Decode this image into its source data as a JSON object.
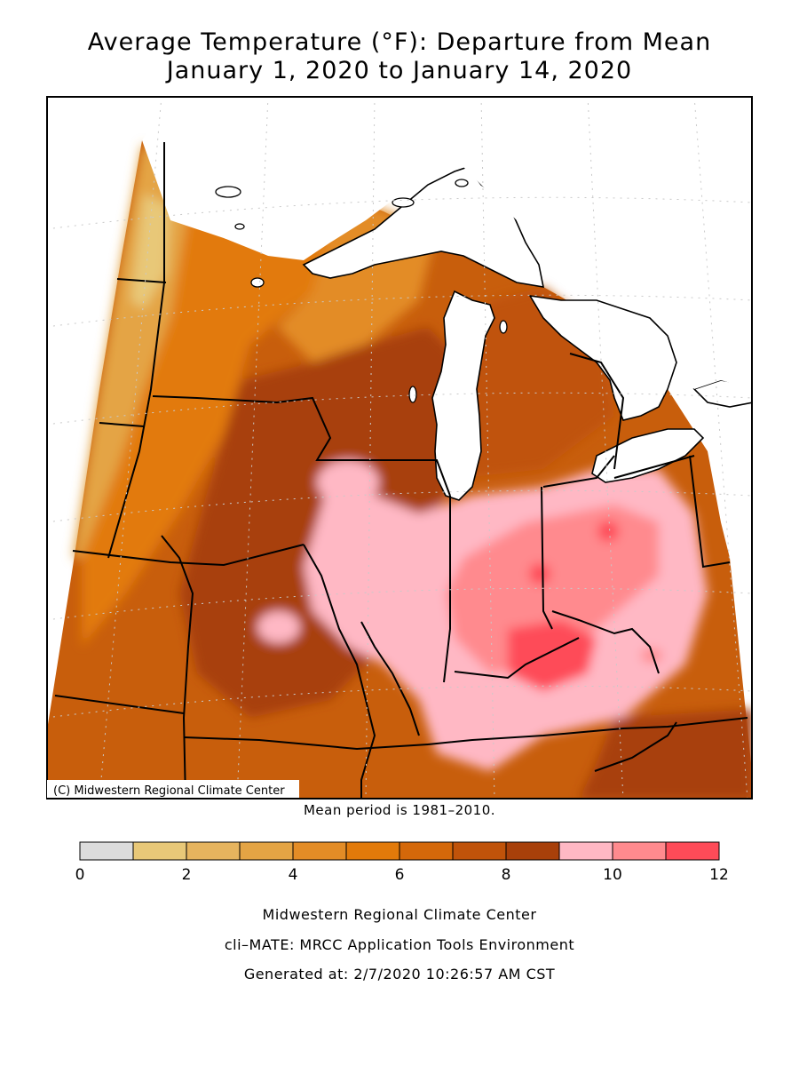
{
  "header": {
    "title": "Average Temperature (°F): Departure from Mean",
    "subtitle": "January 1, 2020 to January 14, 2020"
  },
  "map": {
    "copyright": "(C) Midwestern Regional Climate Center",
    "mean_period": "Mean period is 1981–2010."
  },
  "legend": {
    "bins": [
      {
        "from": 0,
        "to": 1,
        "color": "#dcdcdc"
      },
      {
        "from": 1,
        "to": 2,
        "color": "#e8c878"
      },
      {
        "from": 2,
        "to": 3,
        "color": "#e6b45e"
      },
      {
        "from": 3,
        "to": 4,
        "color": "#e4a444"
      },
      {
        "from": 4,
        "to": 5,
        "color": "#e38c26"
      },
      {
        "from": 5,
        "to": 6,
        "color": "#e27a0a"
      },
      {
        "from": 6,
        "to": 7,
        "color": "#d4680a"
      },
      {
        "from": 7,
        "to": 8,
        "color": "#c0530a"
      },
      {
        "from": 8,
        "to": 9,
        "color": "#a8400a"
      },
      {
        "from": 9,
        "to": 10,
        "color": "#ffb8c4"
      },
      {
        "from": 10,
        "to": 11,
        "color": "#ff8a8e"
      },
      {
        "from": 11,
        "to": 12,
        "color": "#fe4b58"
      }
    ],
    "tick_labels": [
      "0",
      "2",
      "4",
      "6",
      "8",
      "10",
      "12"
    ]
  },
  "footer": {
    "line1": "Midwestern Regional Climate Center",
    "line2": "cli–MATE: MRCC Application Tools Environment",
    "line3": "Generated at: 2/7/2020 10:26:57 AM CST"
  }
}
